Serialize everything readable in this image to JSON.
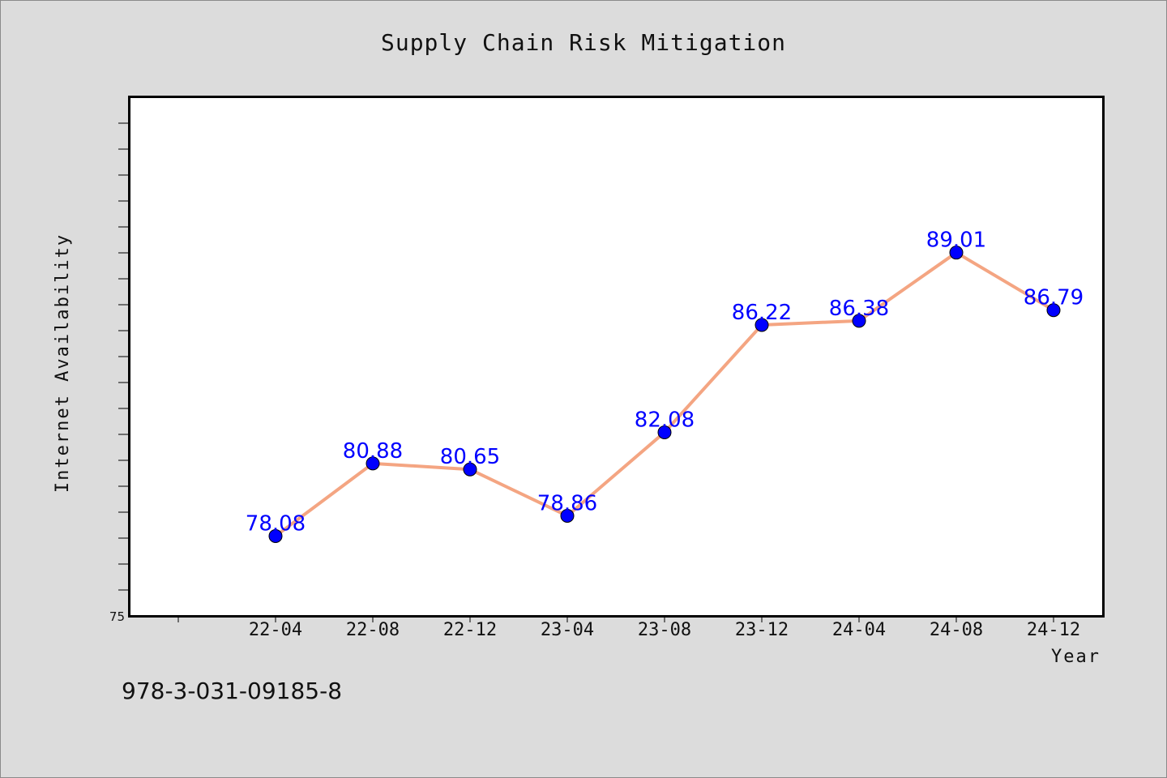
{
  "chart_data": {
    "type": "line",
    "title": "Supply Chain Risk Mitigation",
    "xlabel": "Year",
    "ylabel": "Internet Availability",
    "categories": [
      "22-04",
      "22-08",
      "22-12",
      "23-04",
      "23-08",
      "23-12",
      "24-04",
      "24-08",
      "24-12"
    ],
    "series": [
      {
        "values": [
          78.08,
          80.88,
          80.65,
          78.86,
          82.08,
          86.22,
          86.38,
          89.01,
          86.79
        ],
        "data_labels": [
          "78.08",
          "80.88",
          "80.65",
          "78.86",
          "82.08",
          "86.22",
          "86.38",
          "89.01",
          "86.79"
        ]
      }
    ],
    "y_tick_labels": [
      "75"
    ],
    "ylim": [
      75,
      95
    ],
    "grid": false,
    "line_color": "#f4a582",
    "marker_color": "#0000ff",
    "data_label_color": "#0000ff"
  },
  "footer": {
    "identifier": "978-3-031-09185-8"
  }
}
